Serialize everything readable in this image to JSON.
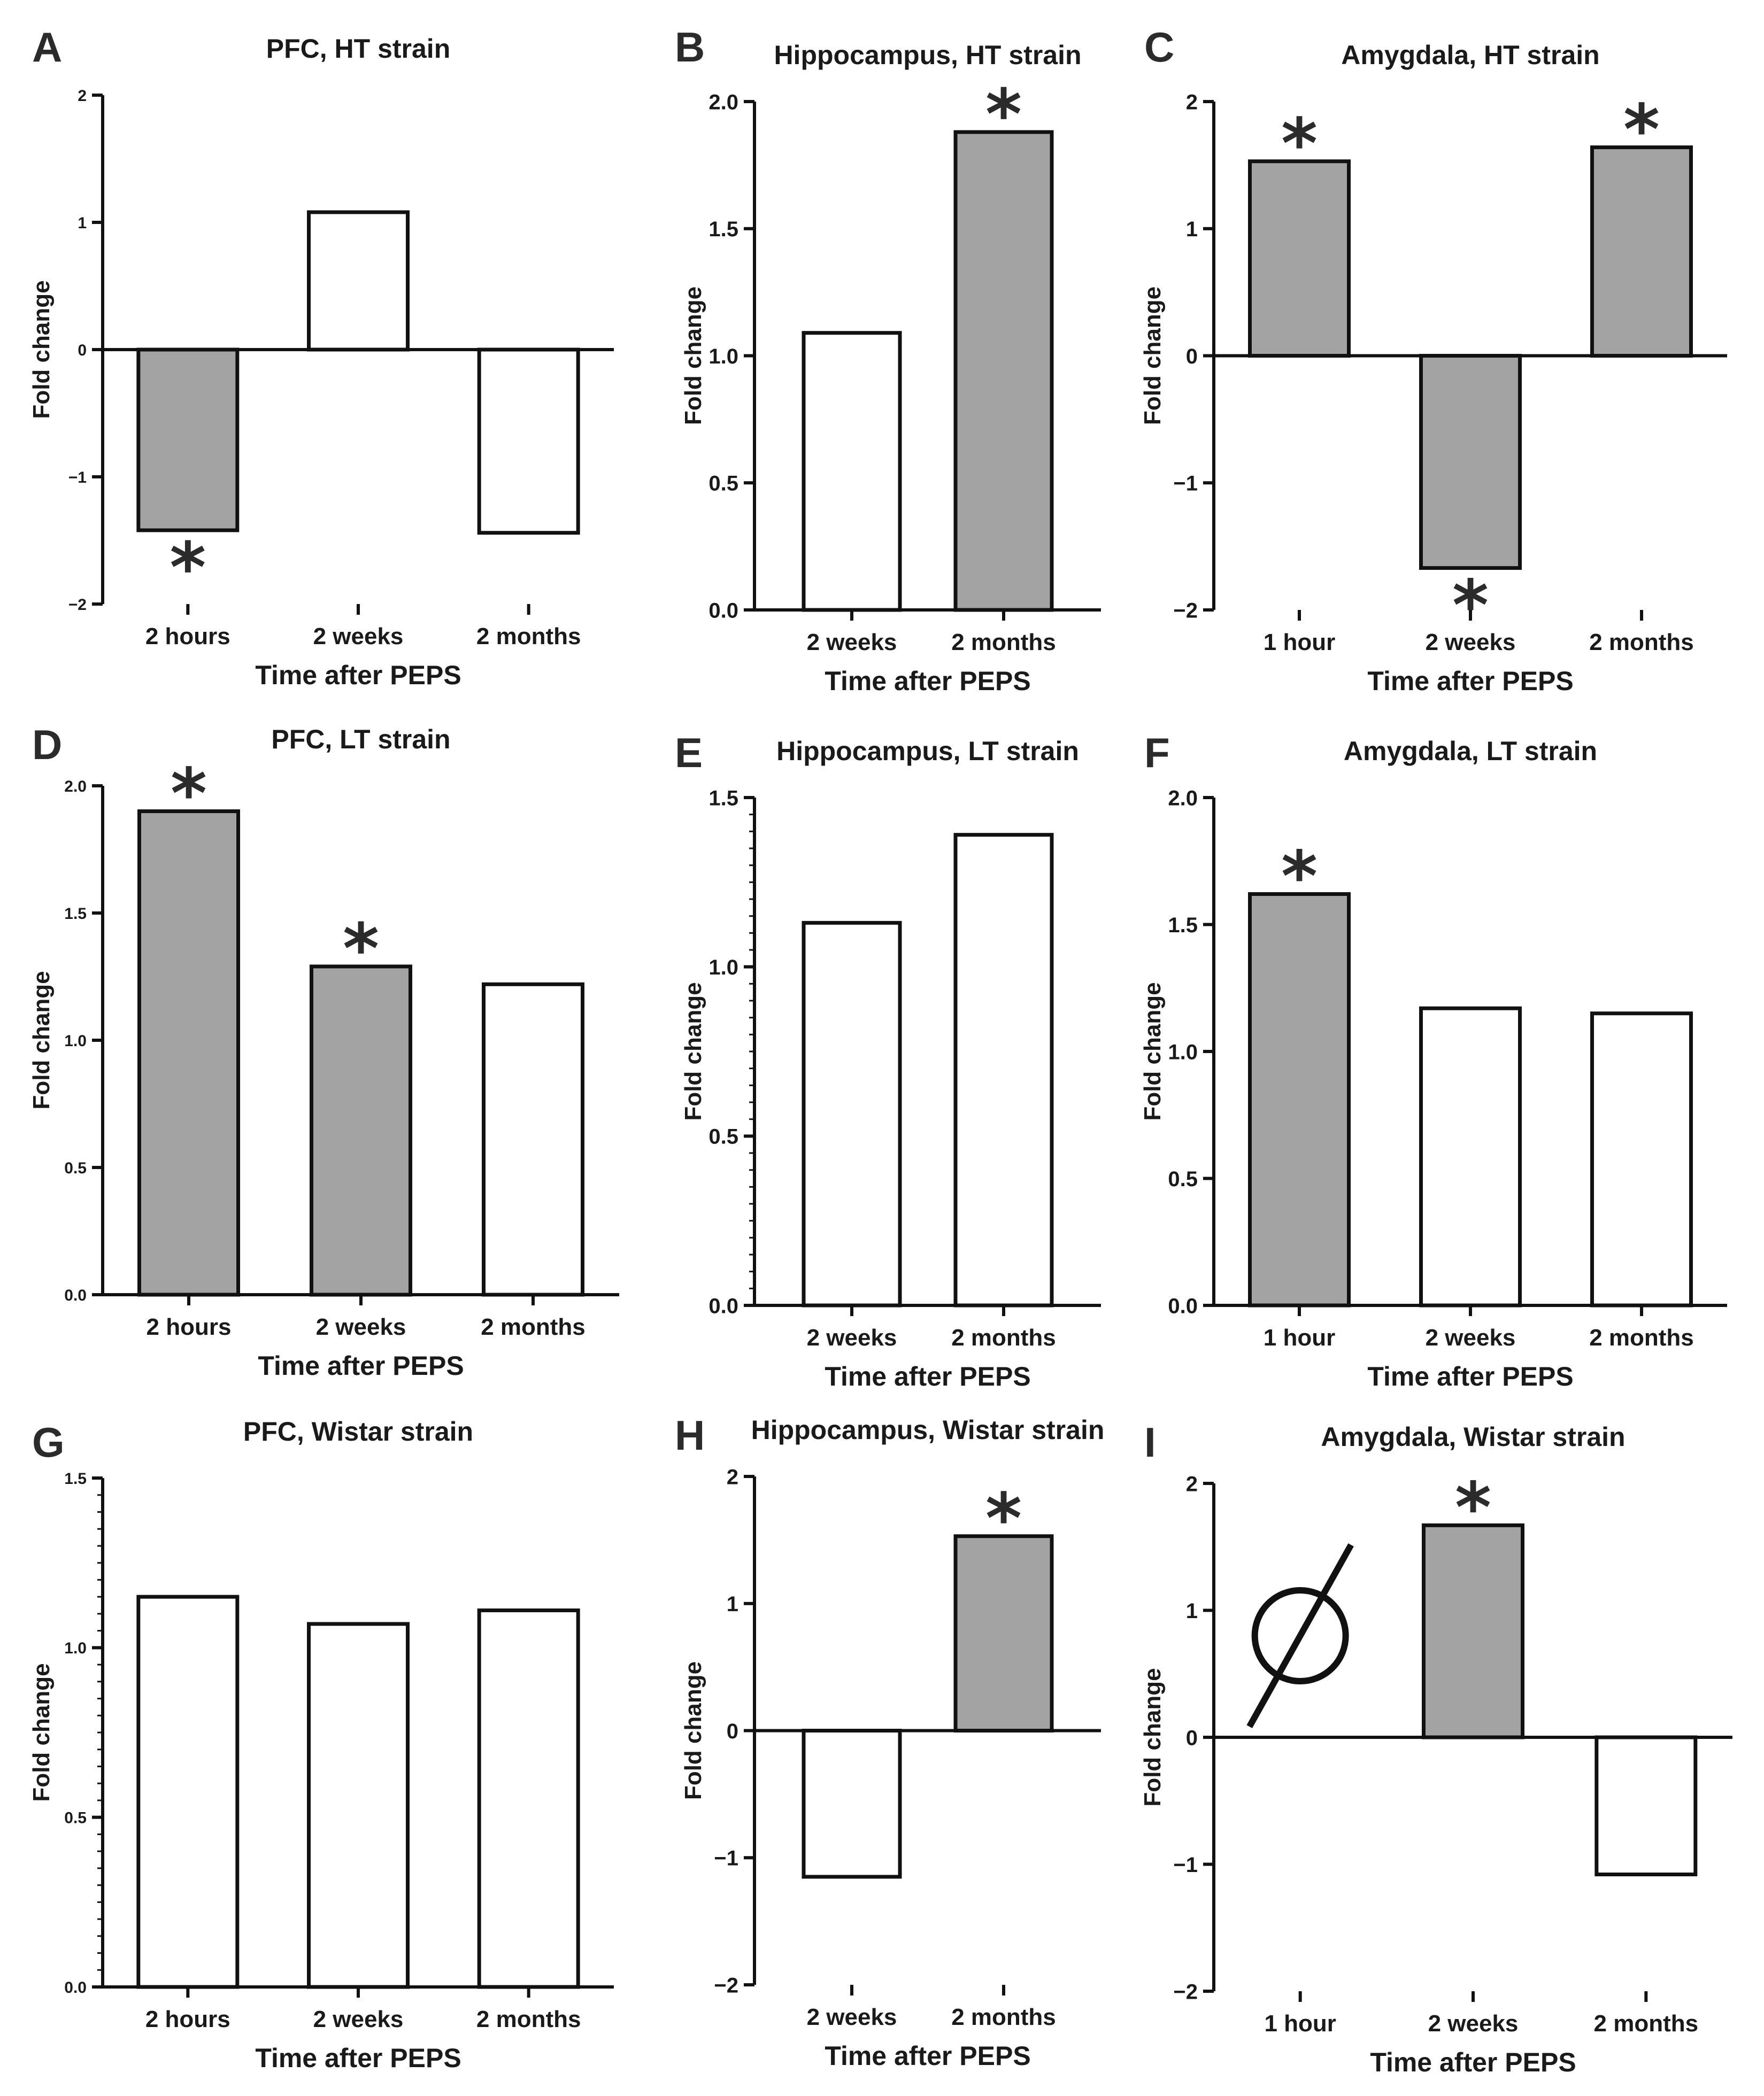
{
  "figure": {
    "colors": {
      "significant": "#a3a3a3",
      "nonsignificant": "#ffffff",
      "stroke": "#111111"
    }
  },
  "chart_data": [
    {
      "panel": "A",
      "title": "PFC, HT strain",
      "type": "bar",
      "categories": [
        "2 hours",
        "2 weeks",
        "2 months"
      ],
      "values": [
        -1.42,
        1.08,
        -1.44
      ],
      "significant": [
        true,
        false,
        false
      ],
      "xlabel": "Time after PEPS",
      "ylabel": "Fold change",
      "ylim": [
        -2,
        2
      ],
      "yticks": [
        -2,
        -1,
        0,
        1,
        2
      ],
      "ytick_labels": [
        "−2",
        "−1",
        "0",
        "1",
        "2"
      ],
      "minor_ticks": false
    },
    {
      "panel": "B",
      "title": "Hippocampus, HT strain",
      "type": "bar",
      "categories": [
        "2 weeks",
        "2 months"
      ],
      "values": [
        1.09,
        1.88
      ],
      "significant": [
        false,
        true
      ],
      "xlabel": "Time after PEPS",
      "ylabel": "Fold change",
      "ylim": [
        0,
        2
      ],
      "yticks": [
        0,
        0.5,
        1,
        1.5,
        2
      ],
      "ytick_labels": [
        "0.0",
        "0.5",
        "1.0",
        "1.5",
        "2.0"
      ],
      "minor_ticks": false
    },
    {
      "panel": "C",
      "title": "Amygdala, HT strain",
      "type": "bar",
      "categories": [
        "1 hour",
        "2 weeks",
        "2 months"
      ],
      "values": [
        1.53,
        -1.67,
        1.64
      ],
      "significant": [
        true,
        true,
        true
      ],
      "xlabel": "Time after PEPS",
      "ylabel": "Fold change",
      "ylim": [
        -2,
        2
      ],
      "yticks": [
        -2,
        -1,
        0,
        1,
        2
      ],
      "ytick_labels": [
        "−2",
        "−1",
        "0",
        "1",
        "2"
      ],
      "minor_ticks": false
    },
    {
      "panel": "D",
      "title": "PFC, LT strain",
      "type": "bar",
      "categories": [
        "2 hours",
        "2 weeks",
        "2 months"
      ],
      "values": [
        1.9,
        1.29,
        1.22
      ],
      "significant": [
        true,
        true,
        false
      ],
      "xlabel": "Time after PEPS",
      "ylabel": "Fold change",
      "ylim": [
        0,
        2
      ],
      "yticks": [
        0,
        0.5,
        1,
        1.5,
        2
      ],
      "ytick_labels": [
        "0.0",
        "0.5",
        "1.0",
        "1.5",
        "2.0"
      ],
      "minor_ticks": false
    },
    {
      "panel": "E",
      "title": "Hippocampus, LT strain",
      "type": "bar",
      "categories": [
        "2 weeks",
        "2 months"
      ],
      "values": [
        1.13,
        1.39
      ],
      "significant": [
        false,
        false
      ],
      "xlabel": "Time after PEPS",
      "ylabel": "Fold change",
      "ylim": [
        0,
        1.5
      ],
      "yticks": [
        0,
        0.5,
        1,
        1.5
      ],
      "ytick_labels": [
        "0.0",
        "0.5",
        "1.0",
        "1.5"
      ],
      "minor_ticks": true
    },
    {
      "panel": "F",
      "title": "Amygdala, LT strain",
      "type": "bar",
      "categories": [
        "1 hour",
        "2 weeks",
        "2 months"
      ],
      "values": [
        1.62,
        1.17,
        1.15
      ],
      "significant": [
        true,
        false,
        false
      ],
      "xlabel": "Time after PEPS",
      "ylabel": "Fold change",
      "ylim": [
        0,
        2
      ],
      "yticks": [
        0,
        0.5,
        1,
        1.5,
        2
      ],
      "ytick_labels": [
        "0.0",
        "0.5",
        "1.0",
        "1.5",
        "2.0"
      ],
      "minor_ticks": false
    },
    {
      "panel": "G",
      "title": "PFC, Wistar strain",
      "type": "bar",
      "categories": [
        "2 hours",
        "2 weeks",
        "2 months"
      ],
      "values": [
        1.15,
        1.07,
        1.11
      ],
      "significant": [
        false,
        false,
        false
      ],
      "xlabel": "Time after PEPS",
      "ylabel": "Fold change",
      "ylim": [
        0,
        1.5
      ],
      "yticks": [
        0,
        0.5,
        1,
        1.5
      ],
      "ytick_labels": [
        "0.0",
        "0.5",
        "1.0",
        "1.5"
      ],
      "minor_ticks": true
    },
    {
      "panel": "H",
      "title": "Hippocampus, Wistar strain",
      "type": "bar",
      "categories": [
        "2 weeks",
        "2 months"
      ],
      "values": [
        -1.15,
        1.53
      ],
      "significant": [
        false,
        true
      ],
      "xlabel": "Time after PEPS",
      "ylabel": "Fold change",
      "ylim": [
        -2,
        2
      ],
      "yticks": [
        -2,
        -1,
        0,
        1,
        2
      ],
      "ytick_labels": [
        "−2",
        "−1",
        "0",
        "1",
        "2"
      ],
      "minor_ticks": false
    },
    {
      "panel": "I",
      "title": "Amygdala, Wistar strain",
      "type": "bar",
      "categories": [
        "1 hour",
        "2 weeks",
        "2 months"
      ],
      "values": [
        null,
        1.67,
        -1.08
      ],
      "significant": [
        false,
        true,
        false
      ],
      "annotation": "empty-set symbol marks no data at 1 hour",
      "xlabel": "Time after PEPS",
      "ylabel": "Fold change",
      "ylim": [
        -2,
        2
      ],
      "yticks": [
        -2,
        -1,
        0,
        1,
        2
      ],
      "ytick_labels": [
        "−2",
        "−1",
        "0",
        "1",
        "2"
      ],
      "minor_ticks": false
    }
  ]
}
